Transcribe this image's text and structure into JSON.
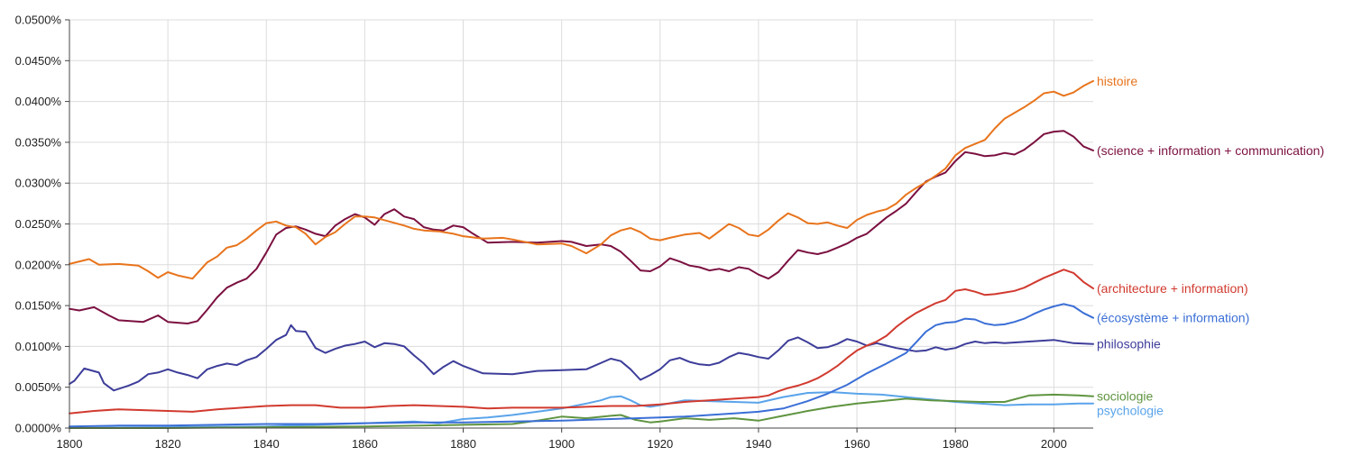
{
  "chart_data": {
    "type": "line",
    "title": "",
    "xlabel": "",
    "ylabel": "",
    "xlim": [
      1800,
      2008
    ],
    "ylim": [
      0,
      0.05
    ],
    "grid": true,
    "legend": "inline-right",
    "y_ticks": [
      "0.0000%",
      "0.0050%",
      "0.0100%",
      "0.0150%",
      "0.0200%",
      "0.0250%",
      "0.0300%",
      "0.0350%",
      "0.0400%",
      "0.0450%",
      "0.0500%"
    ],
    "x_ticks": [
      "1800",
      "1820",
      "1840",
      "1860",
      "1880",
      "1900",
      "1920",
      "1940",
      "1960",
      "1980",
      "2000"
    ],
    "series": [
      {
        "name": "histoire",
        "color": "#e8741c",
        "x": [
          1800,
          1804,
          1806,
          1810,
          1814,
          1816,
          1818,
          1820,
          1822,
          1825,
          1828,
          1830,
          1832,
          1834,
          1836,
          1838,
          1840,
          1842,
          1844,
          1846,
          1848,
          1850,
          1852,
          1854,
          1856,
          1858,
          1860,
          1862,
          1865,
          1868,
          1870,
          1872,
          1875,
          1878,
          1880,
          1884,
          1888,
          1890,
          1895,
          1900,
          1902,
          1905,
          1908,
          1910,
          1912,
          1914,
          1916,
          1918,
          1920,
          1922,
          1925,
          1928,
          1930,
          1932,
          1934,
          1936,
          1938,
          1940,
          1942,
          1944,
          1946,
          1948,
          1950,
          1952,
          1954,
          1956,
          1958,
          1960,
          1962,
          1964,
          1966,
          1968,
          1970,
          1972,
          1974,
          1976,
          1978,
          1980,
          1982,
          1984,
          1986,
          1988,
          1990,
          1992,
          1994,
          1996,
          1998,
          2000,
          2002,
          2004,
          2006,
          2008
        ],
        "values": [
          0.0201,
          0.0207,
          0.02,
          0.0201,
          0.0199,
          0.0192,
          0.0184,
          0.0191,
          0.0187,
          0.0183,
          0.0203,
          0.021,
          0.0221,
          0.0224,
          0.0232,
          0.0242,
          0.0251,
          0.0253,
          0.0248,
          0.0246,
          0.0238,
          0.0225,
          0.0234,
          0.024,
          0.025,
          0.0259,
          0.0259,
          0.0258,
          0.0253,
          0.0248,
          0.0244,
          0.0242,
          0.0241,
          0.0238,
          0.0235,
          0.0232,
          0.0233,
          0.0231,
          0.0225,
          0.0226,
          0.0223,
          0.0214,
          0.0225,
          0.0236,
          0.0242,
          0.0245,
          0.024,
          0.0232,
          0.023,
          0.0233,
          0.0237,
          0.0239,
          0.0232,
          0.0241,
          0.025,
          0.0245,
          0.0237,
          0.0235,
          0.0243,
          0.0254,
          0.0263,
          0.0258,
          0.0251,
          0.025,
          0.0252,
          0.0248,
          0.0245,
          0.0255,
          0.0261,
          0.0265,
          0.0268,
          0.0275,
          0.0286,
          0.0294,
          0.0301,
          0.0309,
          0.0318,
          0.0334,
          0.0343,
          0.0348,
          0.0353,
          0.0367,
          0.0379,
          0.0386,
          0.0393,
          0.0401,
          0.041,
          0.0412,
          0.0407,
          0.0411,
          0.0419,
          0.0425
        ]
      },
      {
        "name": "(science + information + communication)",
        "color": "#7b1040",
        "x": [
          1800,
          1802,
          1805,
          1808,
          1810,
          1815,
          1818,
          1820,
          1822,
          1824,
          1826,
          1828,
          1830,
          1832,
          1834,
          1836,
          1838,
          1840,
          1842,
          1844,
          1846,
          1848,
          1850,
          1852,
          1854,
          1856,
          1858,
          1860,
          1862,
          1864,
          1866,
          1868,
          1870,
          1872,
          1874,
          1876,
          1878,
          1880,
          1882,
          1885,
          1890,
          1895,
          1900,
          1902,
          1905,
          1908,
          1910,
          1912,
          1914,
          1916,
          1918,
          1920,
          1922,
          1924,
          1926,
          1928,
          1930,
          1932,
          1934,
          1936,
          1938,
          1940,
          1942,
          1944,
          1946,
          1948,
          1950,
          1952,
          1954,
          1956,
          1958,
          1960,
          1962,
          1964,
          1966,
          1968,
          1970,
          1972,
          1974,
          1976,
          1978,
          1980,
          1982,
          1984,
          1986,
          1988,
          1990,
          1992,
          1994,
          1996,
          1998,
          2000,
          2002,
          2004,
          2006,
          2008
        ],
        "values": [
          0.0146,
          0.0144,
          0.0148,
          0.0138,
          0.0132,
          0.013,
          0.0138,
          0.013,
          0.0129,
          0.0128,
          0.0131,
          0.0145,
          0.016,
          0.0172,
          0.0178,
          0.0183,
          0.0195,
          0.0215,
          0.0237,
          0.0245,
          0.0247,
          0.0243,
          0.0238,
          0.0235,
          0.0248,
          0.0256,
          0.0262,
          0.0258,
          0.0249,
          0.0262,
          0.0268,
          0.0259,
          0.0256,
          0.0246,
          0.0243,
          0.0242,
          0.0248,
          0.0246,
          0.0238,
          0.0227,
          0.0228,
          0.0227,
          0.0229,
          0.0228,
          0.0223,
          0.0225,
          0.0223,
          0.0216,
          0.0205,
          0.0193,
          0.0192,
          0.0198,
          0.0208,
          0.0204,
          0.0199,
          0.0197,
          0.0193,
          0.0195,
          0.0192,
          0.0197,
          0.0195,
          0.0188,
          0.0183,
          0.0191,
          0.0205,
          0.0218,
          0.0215,
          0.0213,
          0.0216,
          0.0221,
          0.0226,
          0.0233,
          0.0238,
          0.0248,
          0.0258,
          0.0266,
          0.0275,
          0.0289,
          0.0302,
          0.0308,
          0.0313,
          0.0327,
          0.0338,
          0.0336,
          0.0333,
          0.0334,
          0.0337,
          0.0335,
          0.0341,
          0.035,
          0.036,
          0.0363,
          0.0364,
          0.0357,
          0.0345,
          0.034
        ]
      },
      {
        "name": "(architecture + information)",
        "color": "#d13a2f",
        "x": [
          1800,
          1805,
          1810,
          1815,
          1820,
          1825,
          1830,
          1835,
          1840,
          1845,
          1850,
          1855,
          1860,
          1865,
          1870,
          1875,
          1880,
          1885,
          1890,
          1895,
          1900,
          1905,
          1910,
          1915,
          1920,
          1925,
          1930,
          1935,
          1940,
          1942,
          1944,
          1946,
          1948,
          1950,
          1952,
          1954,
          1956,
          1958,
          1960,
          1962,
          1964,
          1966,
          1968,
          1970,
          1972,
          1974,
          1976,
          1978,
          1980,
          1982,
          1984,
          1986,
          1988,
          1990,
          1992,
          1994,
          1996,
          1998,
          2000,
          2002,
          2004,
          2006,
          2008
        ],
        "values": [
          0.0018,
          0.0021,
          0.0023,
          0.0022,
          0.0021,
          0.002,
          0.0023,
          0.0025,
          0.0027,
          0.0028,
          0.0028,
          0.0025,
          0.0025,
          0.0027,
          0.0028,
          0.0027,
          0.0026,
          0.0024,
          0.0025,
          0.0025,
          0.0025,
          0.0026,
          0.0027,
          0.0027,
          0.0029,
          0.0032,
          0.0034,
          0.0036,
          0.0038,
          0.004,
          0.0045,
          0.0049,
          0.0052,
          0.0056,
          0.0061,
          0.0068,
          0.0076,
          0.0086,
          0.0095,
          0.0101,
          0.0106,
          0.0113,
          0.0124,
          0.0133,
          0.0141,
          0.0147,
          0.0153,
          0.0157,
          0.0168,
          0.017,
          0.0167,
          0.0163,
          0.0164,
          0.0166,
          0.0168,
          0.0172,
          0.0178,
          0.0184,
          0.0189,
          0.0194,
          0.019,
          0.0179,
          0.0171
        ]
      },
      {
        "name": "(écosystème + information)",
        "color": "#3b6fd6",
        "x": [
          1800,
          1810,
          1820,
          1830,
          1840,
          1850,
          1860,
          1870,
          1880,
          1890,
          1900,
          1905,
          1910,
          1915,
          1920,
          1925,
          1930,
          1935,
          1940,
          1945,
          1950,
          1954,
          1958,
          1962,
          1966,
          1970,
          1972,
          1974,
          1976,
          1978,
          1980,
          1982,
          1984,
          1986,
          1988,
          1990,
          1992,
          1994,
          1996,
          1998,
          2000,
          2002,
          2004,
          2006,
          2008
        ],
        "values": [
          0.0002,
          0.0003,
          0.0003,
          0.0004,
          0.0005,
          0.0005,
          0.0006,
          0.0007,
          0.0007,
          0.0008,
          0.0009,
          0.001,
          0.0011,
          0.0012,
          0.0013,
          0.0014,
          0.0016,
          0.0018,
          0.002,
          0.0024,
          0.0033,
          0.0042,
          0.0053,
          0.0067,
          0.0079,
          0.0092,
          0.0105,
          0.0118,
          0.0126,
          0.0129,
          0.013,
          0.0134,
          0.0133,
          0.0128,
          0.0126,
          0.0127,
          0.013,
          0.0134,
          0.014,
          0.0145,
          0.0149,
          0.0152,
          0.0149,
          0.0141,
          0.0135
        ]
      },
      {
        "name": "philosophie",
        "color": "#3d3d9a",
        "x": [
          1800,
          1801,
          1803,
          1806,
          1807,
          1809,
          1812,
          1814,
          1816,
          1818,
          1820,
          1822,
          1824,
          1826,
          1828,
          1830,
          1832,
          1834,
          1836,
          1838,
          1840,
          1842,
          1844,
          1845,
          1846,
          1848,
          1850,
          1852,
          1854,
          1856,
          1858,
          1860,
          1862,
          1864,
          1866,
          1868,
          1870,
          1872,
          1874,
          1876,
          1878,
          1880,
          1884,
          1890,
          1895,
          1900,
          1905,
          1910,
          1912,
          1914,
          1916,
          1918,
          1920,
          1922,
          1924,
          1926,
          1928,
          1930,
          1932,
          1934,
          1936,
          1938,
          1940,
          1942,
          1944,
          1946,
          1948,
          1950,
          1952,
          1954,
          1956,
          1958,
          1960,
          1962,
          1964,
          1966,
          1968,
          1970,
          1972,
          1974,
          1976,
          1978,
          1980,
          1982,
          1984,
          1986,
          1988,
          1990,
          1995,
          2000,
          2004,
          2008
        ],
        "values": [
          0.0054,
          0.0058,
          0.0073,
          0.0068,
          0.0055,
          0.0046,
          0.0052,
          0.0057,
          0.0066,
          0.0068,
          0.0072,
          0.0068,
          0.0065,
          0.0061,
          0.0072,
          0.0076,
          0.0079,
          0.0077,
          0.0083,
          0.0087,
          0.0097,
          0.0108,
          0.0114,
          0.0126,
          0.0119,
          0.0118,
          0.0098,
          0.0092,
          0.0097,
          0.0101,
          0.0103,
          0.0106,
          0.0099,
          0.0104,
          0.0103,
          0.01,
          0.0089,
          0.0079,
          0.0066,
          0.0075,
          0.0082,
          0.0076,
          0.0067,
          0.0066,
          0.007,
          0.0071,
          0.0072,
          0.0085,
          0.0082,
          0.0072,
          0.0059,
          0.0065,
          0.0072,
          0.0083,
          0.0086,
          0.0081,
          0.0078,
          0.0077,
          0.008,
          0.0087,
          0.0092,
          0.009,
          0.0087,
          0.0085,
          0.0095,
          0.0107,
          0.0111,
          0.0105,
          0.0098,
          0.0099,
          0.0103,
          0.0109,
          0.0106,
          0.0101,
          0.0104,
          0.0101,
          0.0098,
          0.0096,
          0.0094,
          0.0095,
          0.0099,
          0.0096,
          0.0098,
          0.0103,
          0.0106,
          0.0104,
          0.0105,
          0.0104,
          0.0106,
          0.0108,
          0.0104,
          0.0103
        ]
      },
      {
        "name": "sociologie",
        "color": "#5f9440",
        "x": [
          1800,
          1820,
          1840,
          1860,
          1880,
          1890,
          1895,
          1900,
          1905,
          1910,
          1912,
          1915,
          1918,
          1920,
          1925,
          1930,
          1935,
          1940,
          1945,
          1950,
          1955,
          1960,
          1965,
          1970,
          1975,
          1980,
          1985,
          1990,
          1995,
          2000,
          2005,
          2008
        ],
        "values": [
          0.0,
          0.0,
          0.0001,
          0.0002,
          0.0004,
          0.0005,
          0.0009,
          0.0014,
          0.0012,
          0.0015,
          0.0016,
          0.001,
          0.0007,
          0.0008,
          0.0012,
          0.001,
          0.0012,
          0.0009,
          0.0015,
          0.0021,
          0.0026,
          0.003,
          0.0033,
          0.0036,
          0.0034,
          0.0033,
          0.0032,
          0.0032,
          0.004,
          0.0041,
          0.004,
          0.0039
        ]
      },
      {
        "name": "psychologie",
        "color": "#5aa4ea",
        "x": [
          1800,
          1820,
          1840,
          1850,
          1860,
          1870,
          1875,
          1880,
          1885,
          1890,
          1895,
          1900,
          1905,
          1908,
          1910,
          1912,
          1914,
          1916,
          1918,
          1920,
          1925,
          1930,
          1935,
          1940,
          1945,
          1950,
          1955,
          1960,
          1965,
          1970,
          1975,
          1980,
          1985,
          1990,
          1995,
          2000,
          2005,
          2008
        ],
        "values": [
          0.0,
          0.0001,
          0.0002,
          0.0004,
          0.0006,
          0.0008,
          0.0006,
          0.0011,
          0.0013,
          0.0016,
          0.002,
          0.0024,
          0.003,
          0.0034,
          0.0038,
          0.0039,
          0.0034,
          0.0028,
          0.0026,
          0.0028,
          0.0034,
          0.0033,
          0.0032,
          0.0031,
          0.0038,
          0.0043,
          0.0044,
          0.0042,
          0.0041,
          0.0038,
          0.0035,
          0.0032,
          0.003,
          0.0028,
          0.0029,
          0.0029,
          0.003,
          0.003
        ]
      }
    ]
  }
}
